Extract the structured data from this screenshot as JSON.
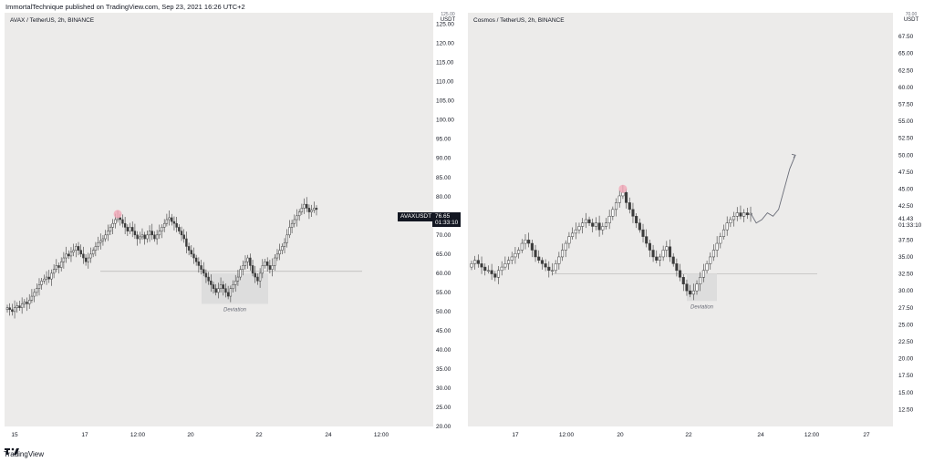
{
  "header": {
    "text": "ImmortalTechnique published on TradingView.com, Sep 23, 2021 16:26 UTC+2"
  },
  "footer": {
    "brand": "TradingView"
  },
  "colors": {
    "plot_bg": "#ecebea",
    "candle": "#3b3b3b",
    "accent_pink": "#f2a7b8",
    "deviation_box": "#dddddd",
    "line_grey": "#b5b5b5"
  },
  "panels": [
    {
      "symbol": "AVAX / TetherUS, 2h, BINANCE",
      "unit": "USDT",
      "axis_title": "125.00",
      "y_ticks": [
        "125.00",
        "120.00",
        "115.00",
        "110.00",
        "105.00",
        "100.00",
        "95.00",
        "90.00",
        "85.00",
        "80.00",
        "75.00",
        "70.00",
        "65.00",
        "60.00",
        "55.00",
        "50.00",
        "45.00",
        "40.00",
        "35.00",
        "30.00",
        "25.00",
        "20.00"
      ],
      "x_ticks": [
        "15",
        "17",
        "12:00",
        "20",
        "22",
        "24",
        "12:00"
      ],
      "price_badge": {
        "ticker": "AVAXUSDT",
        "price": "76.65",
        "countdown": "01:33:10"
      },
      "annotation": "Deviation",
      "chart_data": {
        "type": "candlestick",
        "title": "AVAX / TetherUS, 2h, BINANCE",
        "ylim": [
          20,
          128
        ],
        "support_level": 60.5,
        "deviation_range": [
          52,
          60
        ],
        "closes": [
          51,
          50.5,
          50,
          51,
          51.5,
          51,
          52,
          52.5,
          52,
          53,
          54,
          55,
          56,
          57,
          58,
          58.5,
          59,
          58.5,
          60,
          61,
          62,
          61.5,
          63,
          64,
          65,
          64.5,
          65.5,
          66,
          67,
          66,
          65,
          64,
          63,
          64,
          65,
          66,
          67,
          68,
          68.5,
          69,
          70,
          71,
          72,
          73,
          74,
          74.5,
          74,
          73,
          72,
          71,
          72,
          71,
          70,
          69,
          69.5,
          70,
          69,
          70,
          71,
          70,
          69,
          70,
          71,
          72,
          73,
          74,
          74.5,
          73.5,
          73,
          72,
          71,
          70,
          69,
          67,
          66,
          65,
          64,
          63,
          62,
          61,
          60,
          59,
          58,
          57,
          56,
          55,
          56,
          57,
          56,
          55,
          54,
          56,
          57,
          58,
          59,
          61,
          62,
          63,
          64,
          62,
          60,
          59,
          58,
          60,
          62,
          63,
          62,
          61,
          62,
          64,
          65,
          66,
          67,
          68,
          70,
          72,
          73,
          74,
          75,
          76,
          77,
          78,
          77,
          76,
          76.5,
          77,
          76.65
        ]
      }
    },
    {
      "symbol": "Cosmos / TetherUS, 2h, BINANCE",
      "unit": "USDT",
      "axis_title": "70.00",
      "y_ticks": [
        "67.50",
        "65.00",
        "62.50",
        "60.00",
        "57.50",
        "55.00",
        "52.50",
        "50.00",
        "47.50",
        "45.00",
        "42.50",
        "40.00",
        "37.50",
        "35.00",
        "32.50",
        "30.00",
        "27.50",
        "25.00",
        "22.50",
        "20.00",
        "17.50",
        "15.00",
        "12.50"
      ],
      "x_ticks": [
        "17",
        "12:00",
        "20",
        "22",
        "24",
        "12:00",
        "27"
      ],
      "price_badge": {
        "ticker": "",
        "price": "41.43",
        "countdown": "01:33:10"
      },
      "annotation": "Deviation",
      "chart_data": {
        "type": "candlestick",
        "title": "Cosmos / TetherUS, 2h, BINANCE",
        "ylim": [
          10,
          71
        ],
        "support_level": 32.5,
        "deviation_range": [
          28.5,
          32.5
        ],
        "closes": [
          34,
          34.5,
          34,
          33.5,
          33,
          33,
          32.5,
          32,
          33,
          33.5,
          34,
          34.5,
          35,
          35.5,
          36,
          37,
          37.5,
          37,
          36,
          35,
          34.5,
          34,
          33.5,
          33,
          33,
          34,
          35,
          36,
          37,
          38,
          38.5,
          39,
          39.5,
          40,
          40.5,
          40,
          39.5,
          40,
          39,
          39.5,
          40,
          41,
          42,
          43,
          44,
          44.5,
          43,
          42,
          41,
          40,
          39,
          38,
          37,
          36,
          35,
          34.5,
          35,
          36,
          36.5,
          35,
          34,
          33,
          32,
          31,
          30,
          29.5,
          30,
          31,
          32,
          33,
          34,
          35,
          36,
          37,
          38,
          39,
          40,
          40.5,
          41,
          41.5,
          41,
          41.5,
          41.2,
          41.43
        ],
        "projection": [
          41.43,
          40,
          40.5,
          41.5,
          41,
          42,
          45,
          48,
          50
        ]
      }
    }
  ]
}
